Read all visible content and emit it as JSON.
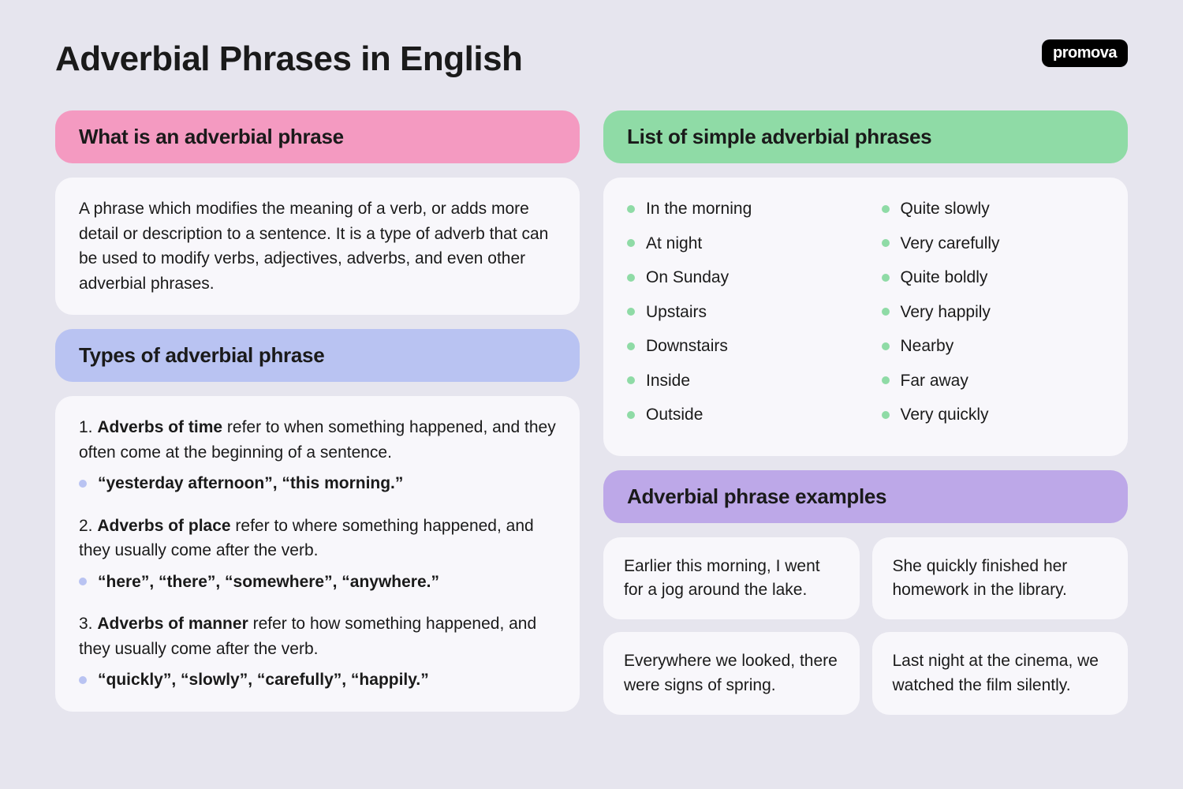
{
  "page": {
    "title": "Adverbial Phrases in English",
    "logo": "promova"
  },
  "colors": {
    "background": "#e6e5ee",
    "card_bg": "#f8f7fb",
    "pink": "#f49ac1",
    "blue": "#b9c3f2",
    "green": "#8fdba6",
    "purple": "#bda8e8",
    "text": "#1a1a1a"
  },
  "typography": {
    "title_fontsize": 44,
    "section_header_fontsize": 26,
    "body_fontsize": 21
  },
  "sections": {
    "what": {
      "header": "What is an adverbial phrase",
      "body": "A phrase which modifies the meaning of a verb, or adds more detail or description to a sentence. It is a type of adverb that can be used to modify verbs, adjectives, adverbs, and even other adverbial phrases."
    },
    "types": {
      "header": "Types of adverbial phrase",
      "items": [
        {
          "num": "1.",
          "label": "Adverbs of time",
          "rest": " refer to when something happened, and they often come at the beginning of a sentence.",
          "example": "“yesterday afternoon”, “this morning.”"
        },
        {
          "num": "2.",
          "label": "Adverbs of place",
          "rest": " refer to where something happened, and they usually come after the verb.",
          "example": "“here”, “there”, “somewhere”, “anywhere.”"
        },
        {
          "num": "3.",
          "label": "Adverbs of manner",
          "rest": " refer to how something happened, and they usually come after the verb.",
          "example": "“quickly”, “slowly”, “carefully”, “happily.”"
        }
      ]
    },
    "list": {
      "header": "List of simple adverbial phrases",
      "items": [
        "In the morning",
        "At night",
        "On Sunday",
        "Upstairs",
        "Downstairs",
        "Inside",
        "Outside",
        "Quite slowly",
        "Very carefully",
        "Quite boldly",
        "Very happily",
        "Nearby",
        "Far away",
        "Very quickly"
      ]
    },
    "examples": {
      "header": "Adverbial phrase examples",
      "items": [
        "Earlier this morning, I went for a jog around the lake.",
        "She quickly finished her homework in the library.",
        "Everywhere we looked, there were signs of spring.",
        "Last night at the cinema, we watched the film silently."
      ]
    }
  }
}
